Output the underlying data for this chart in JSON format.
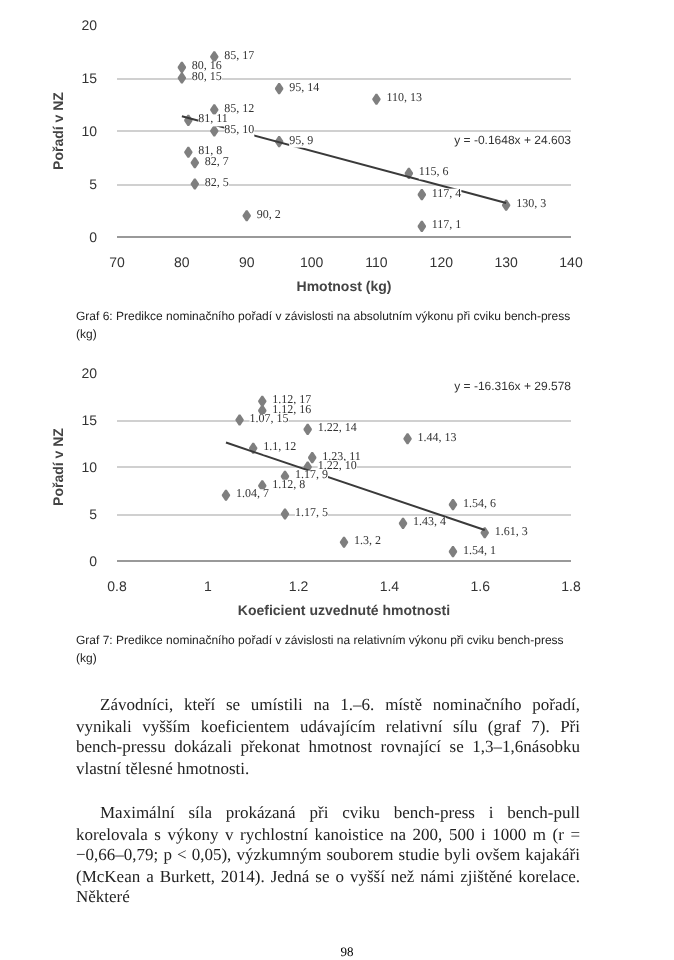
{
  "chart_data": [
    {
      "type": "scatter",
      "xlabel": "Hmotnost (kg)",
      "ylabel": "Pořadí v NZ",
      "grid": "y",
      "xlim": [
        70,
        140
      ],
      "xticks": [
        70,
        80,
        90,
        100,
        110,
        120,
        130,
        140
      ],
      "ylim": [
        0,
        20
      ],
      "yticks": [
        0,
        5,
        10,
        15,
        20
      ],
      "series": [
        {
          "color": "#7f7f7f",
          "marker": "diamond",
          "x": [
            85,
            80,
            80,
            95,
            110,
            85,
            81,
            85,
            95,
            81,
            82,
            115,
            82,
            117,
            130,
            90,
            117
          ],
          "values": [
            17,
            16,
            15,
            14,
            13,
            12,
            11,
            10,
            9,
            8,
            7,
            6,
            5,
            4,
            3,
            2,
            1
          ],
          "value_labels": [
            "85, 17",
            "80, 16",
            "80, 15",
            "95, 14",
            "110, 13",
            "85, 12",
            "81, 11",
            "85, 10",
            "95, 9",
            "81, 8",
            "82, 7",
            "115, 6",
            "82, 5",
            "117, 4",
            "130, 3",
            "90, 2",
            "117, 1"
          ]
        },
        {
          "type": "line",
          "color": "#3a3a3a",
          "x": [
            80,
            130
          ],
          "values": [
            11.4,
            3.2
          ]
        }
      ],
      "annotations": [
        "y = -0.1648x + 24.603",
        "Graf 6: Predikce nominačního pořadí v závislosti na absolutním výkonu při cviku bench-press (kg)"
      ]
    },
    {
      "type": "scatter",
      "xlabel": "Koeficient uzvednuté hmotnosti",
      "ylabel": "Pořadí v NZ",
      "grid": "y",
      "xlim": [
        0.8,
        1.8
      ],
      "xticks": [
        0.8,
        1,
        1.2,
        1.4,
        1.6,
        1.8
      ],
      "ylim": [
        0,
        20
      ],
      "yticks": [
        0,
        5,
        10,
        15,
        20
      ],
      "series": [
        {
          "color": "#7f7f7f",
          "marker": "diamond",
          "x": [
            1.12,
            1.12,
            1.07,
            1.22,
            1.44,
            1.1,
            1.23,
            1.22,
            1.17,
            1.12,
            1.04,
            1.54,
            1.17,
            1.43,
            1.61,
            1.3,
            1.54
          ],
          "values": [
            17,
            16,
            15,
            14,
            13,
            12,
            11,
            10,
            9,
            8,
            7,
            6,
            5,
            4,
            3,
            2,
            1
          ],
          "value_labels": [
            "1.12, 17",
            "1.12, 16",
            "1.07, 15",
            "1.22, 14",
            "1.44, 13",
            "1.1, 12",
            "1.23, 11",
            "1.22, 10",
            "1.17, 9",
            "1.12, 8",
            "1.04, 7",
            "1.54, 6",
            "1.17, 5",
            "1.43, 4",
            "1.61, 3",
            "1.3, 2",
            "1.54, 1"
          ]
        },
        {
          "type": "line",
          "color": "#3a3a3a",
          "x": [
            1.04,
            1.61
          ],
          "values": [
            12.6,
            3.3
          ]
        }
      ],
      "annotations": [
        "y = -16.316x + 29.578",
        "Graf 7: Predikce nominačního pořadí v závislosti na relativním výkonu při cviku bench-press (kg)",
        "Závodníci, kteří se umístili na 1.–6. místě nominačního pořadí, vynikali vyšším koeficientem udávajícím relativní sílu (graf 7). Při bench-pressu dokázali překonat hmotnost rovnající se 1,3–1,6násobku vlastní tělesné hmotnosti.",
        "Maximální síla prokázaná při cviku bench-press i bench-pull korelovala s výkony v rychlostní kanoistice na 200, 500 i 1000 m (r = −0,66–0,79; p < 0,05), výzkumným souborem studie byli ovšem kajakáři (McKean a Burkett, 2014). Jedná se o vyšší než námi zjištěné korelace. Některé",
        "98"
      ]
    }
  ]
}
